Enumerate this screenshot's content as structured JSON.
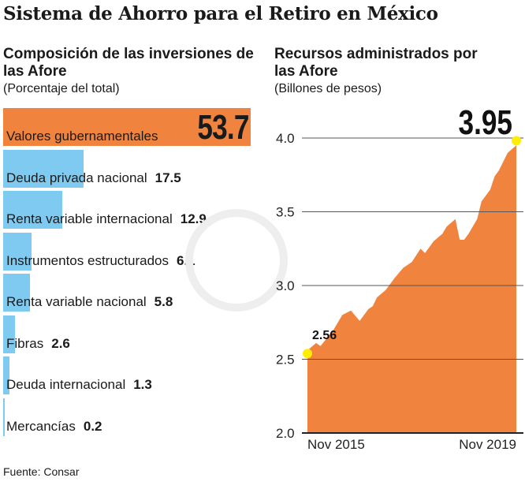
{
  "title": "Sistema de Ahorro para el Retiro en México",
  "source": "Fuente: Consar",
  "colors": {
    "highlight": "#f0843f",
    "bar": "#7fcaf0",
    "area": "#f0843f",
    "marker": "#ffee00"
  },
  "chart_data": [
    {
      "type": "bar",
      "orientation": "horizontal",
      "title": "Composición de las inversiones de las Afore",
      "subtitle": "(Porcentaje del total)",
      "categories": [
        "Valores gubernamentales",
        "Deuda privada nacional",
        "Renta variable internacional",
        "Instrumentos estructurados",
        "Renta variable nacional",
        "Fibras",
        "Deuda internacional",
        "Mercancías"
      ],
      "values": [
        53.7,
        17.5,
        12.9,
        6.1,
        5.8,
        2.6,
        1.3,
        0.2
      ],
      "value_labels": [
        "53.7",
        "17.5",
        "12.9",
        "6.1",
        "5.8",
        "2.6",
        "1.3",
        "0.2"
      ]
    },
    {
      "type": "area",
      "title": "Recursos administrados por las Afore",
      "subtitle": "(Billones de pesos)",
      "ylim": [
        2.0,
        4.0
      ],
      "yticks": [
        "2.0",
        "2.5",
        "3.0",
        "3.5",
        "4.0"
      ],
      "xticks": [
        "Nov 2015",
        "Nov 2019"
      ],
      "grid": true,
      "points": [
        [
          "2015-11",
          2.56
        ],
        [
          "2016-01",
          2.61
        ],
        [
          "2016-02",
          2.59
        ],
        [
          "2016-05",
          2.7
        ],
        [
          "2016-07",
          2.8
        ],
        [
          "2016-09",
          2.83
        ],
        [
          "2016-11",
          2.76
        ],
        [
          "2017-01",
          2.84
        ],
        [
          "2017-02",
          2.86
        ],
        [
          "2017-03",
          2.92
        ],
        [
          "2017-05",
          2.97
        ],
        [
          "2017-07",
          3.05
        ],
        [
          "2017-09",
          3.12
        ],
        [
          "2017-11",
          3.16
        ],
        [
          "2018-01",
          3.25
        ],
        [
          "2018-02",
          3.22
        ],
        [
          "2018-04",
          3.3
        ],
        [
          "2018-06",
          3.35
        ],
        [
          "2018-07",
          3.4
        ],
        [
          "2018-09",
          3.45
        ],
        [
          "2018-10",
          3.31
        ],
        [
          "2018-11",
          3.31
        ],
        [
          "2018-12",
          3.35
        ],
        [
          "2019-02",
          3.45
        ],
        [
          "2019-03",
          3.57
        ],
        [
          "2019-05",
          3.65
        ],
        [
          "2019-06",
          3.74
        ],
        [
          "2019-07",
          3.78
        ],
        [
          "2019-09",
          3.9
        ],
        [
          "2019-11",
          3.95
        ]
      ],
      "annotations": {
        "start": "2.56",
        "end": "3.95"
      }
    }
  ]
}
